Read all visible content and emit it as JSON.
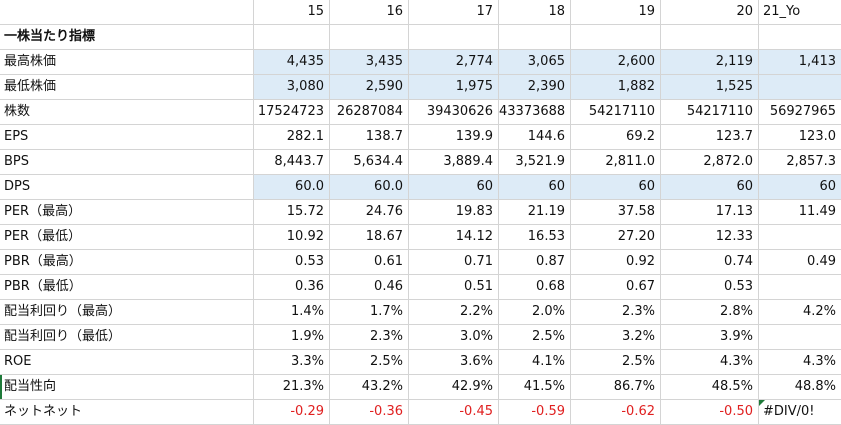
{
  "header": [
    "",
    "15",
    "16",
    "17",
    "18",
    "19",
    "20",
    "21_Yo"
  ],
  "section_title": "一株当たり指標",
  "rows": [
    {
      "label": "最高株価",
      "values": [
        "4,435",
        "3,435",
        "2,774",
        "3,065",
        "2,600",
        "2,119",
        "1,413"
      ],
      "blue": true
    },
    {
      "label": "最低株価",
      "values": [
        "3,080",
        "2,590",
        "1,975",
        "2,390",
        "1,882",
        "1,525",
        ""
      ],
      "blue": true
    },
    {
      "label": "株数",
      "values": [
        "17524723",
        "26287084",
        "39430626",
        "43373688",
        "54217110",
        "54217110",
        "56927965"
      ],
      "blue": false
    },
    {
      "label": "EPS",
      "values": [
        "282.1",
        "138.7",
        "139.9",
        "144.6",
        "69.2",
        "123.7",
        "123.0"
      ],
      "blue": false
    },
    {
      "label": "BPS",
      "values": [
        "8,443.7",
        "5,634.4",
        "3,889.4",
        "3,521.9",
        "2,811.0",
        "2,872.0",
        "2,857.3"
      ],
      "blue": false
    },
    {
      "label": "DPS",
      "values": [
        "60.0",
        "60.0",
        "60",
        "60",
        "60",
        "60",
        "60"
      ],
      "blue": true
    },
    {
      "label": "PER（最高）",
      "values": [
        "15.72",
        "24.76",
        "19.83",
        "21.19",
        "37.58",
        "17.13",
        "11.49"
      ],
      "blue": false
    },
    {
      "label": "PER（最低）",
      "values": [
        "10.92",
        "18.67",
        "14.12",
        "16.53",
        "27.20",
        "12.33",
        ""
      ],
      "blue": false
    },
    {
      "label": "PBR（最高）",
      "values": [
        "0.53",
        "0.61",
        "0.71",
        "0.87",
        "0.92",
        "0.74",
        "0.49"
      ],
      "blue": false
    },
    {
      "label": "PBR（最低）",
      "values": [
        "0.36",
        "0.46",
        "0.51",
        "0.68",
        "0.67",
        "0.53",
        ""
      ],
      "blue": false
    },
    {
      "label": "配当利回り（最高）",
      "values": [
        "1.4%",
        "1.7%",
        "2.2%",
        "2.0%",
        "2.3%",
        "2.8%",
        "4.2%"
      ],
      "blue": false
    },
    {
      "label": "配当利回り（最低）",
      "values": [
        "1.9%",
        "2.3%",
        "3.0%",
        "2.5%",
        "3.2%",
        "3.9%",
        ""
      ],
      "blue": false
    },
    {
      "label": "ROE",
      "values": [
        "3.3%",
        "2.5%",
        "3.6%",
        "4.1%",
        "2.5%",
        "4.3%",
        "4.3%"
      ],
      "blue": false
    },
    {
      "label": "配当性向",
      "values": [
        "21.3%",
        "43.2%",
        "42.9%",
        "41.5%",
        "86.7%",
        "48.5%",
        "48.8%"
      ],
      "blue": false
    },
    {
      "label": "ネットネット",
      "values": [
        "-0.29",
        "-0.36",
        "-0.45",
        "-0.59",
        "-0.62",
        "-0.50",
        "#DIV/0!"
      ],
      "blue": false,
      "red": true
    }
  ],
  "colors": {
    "highlight": "#ddebf7",
    "negative": "#e02020",
    "gridline": "#d4d4d4",
    "error_marker": "#1f7a3a"
  }
}
